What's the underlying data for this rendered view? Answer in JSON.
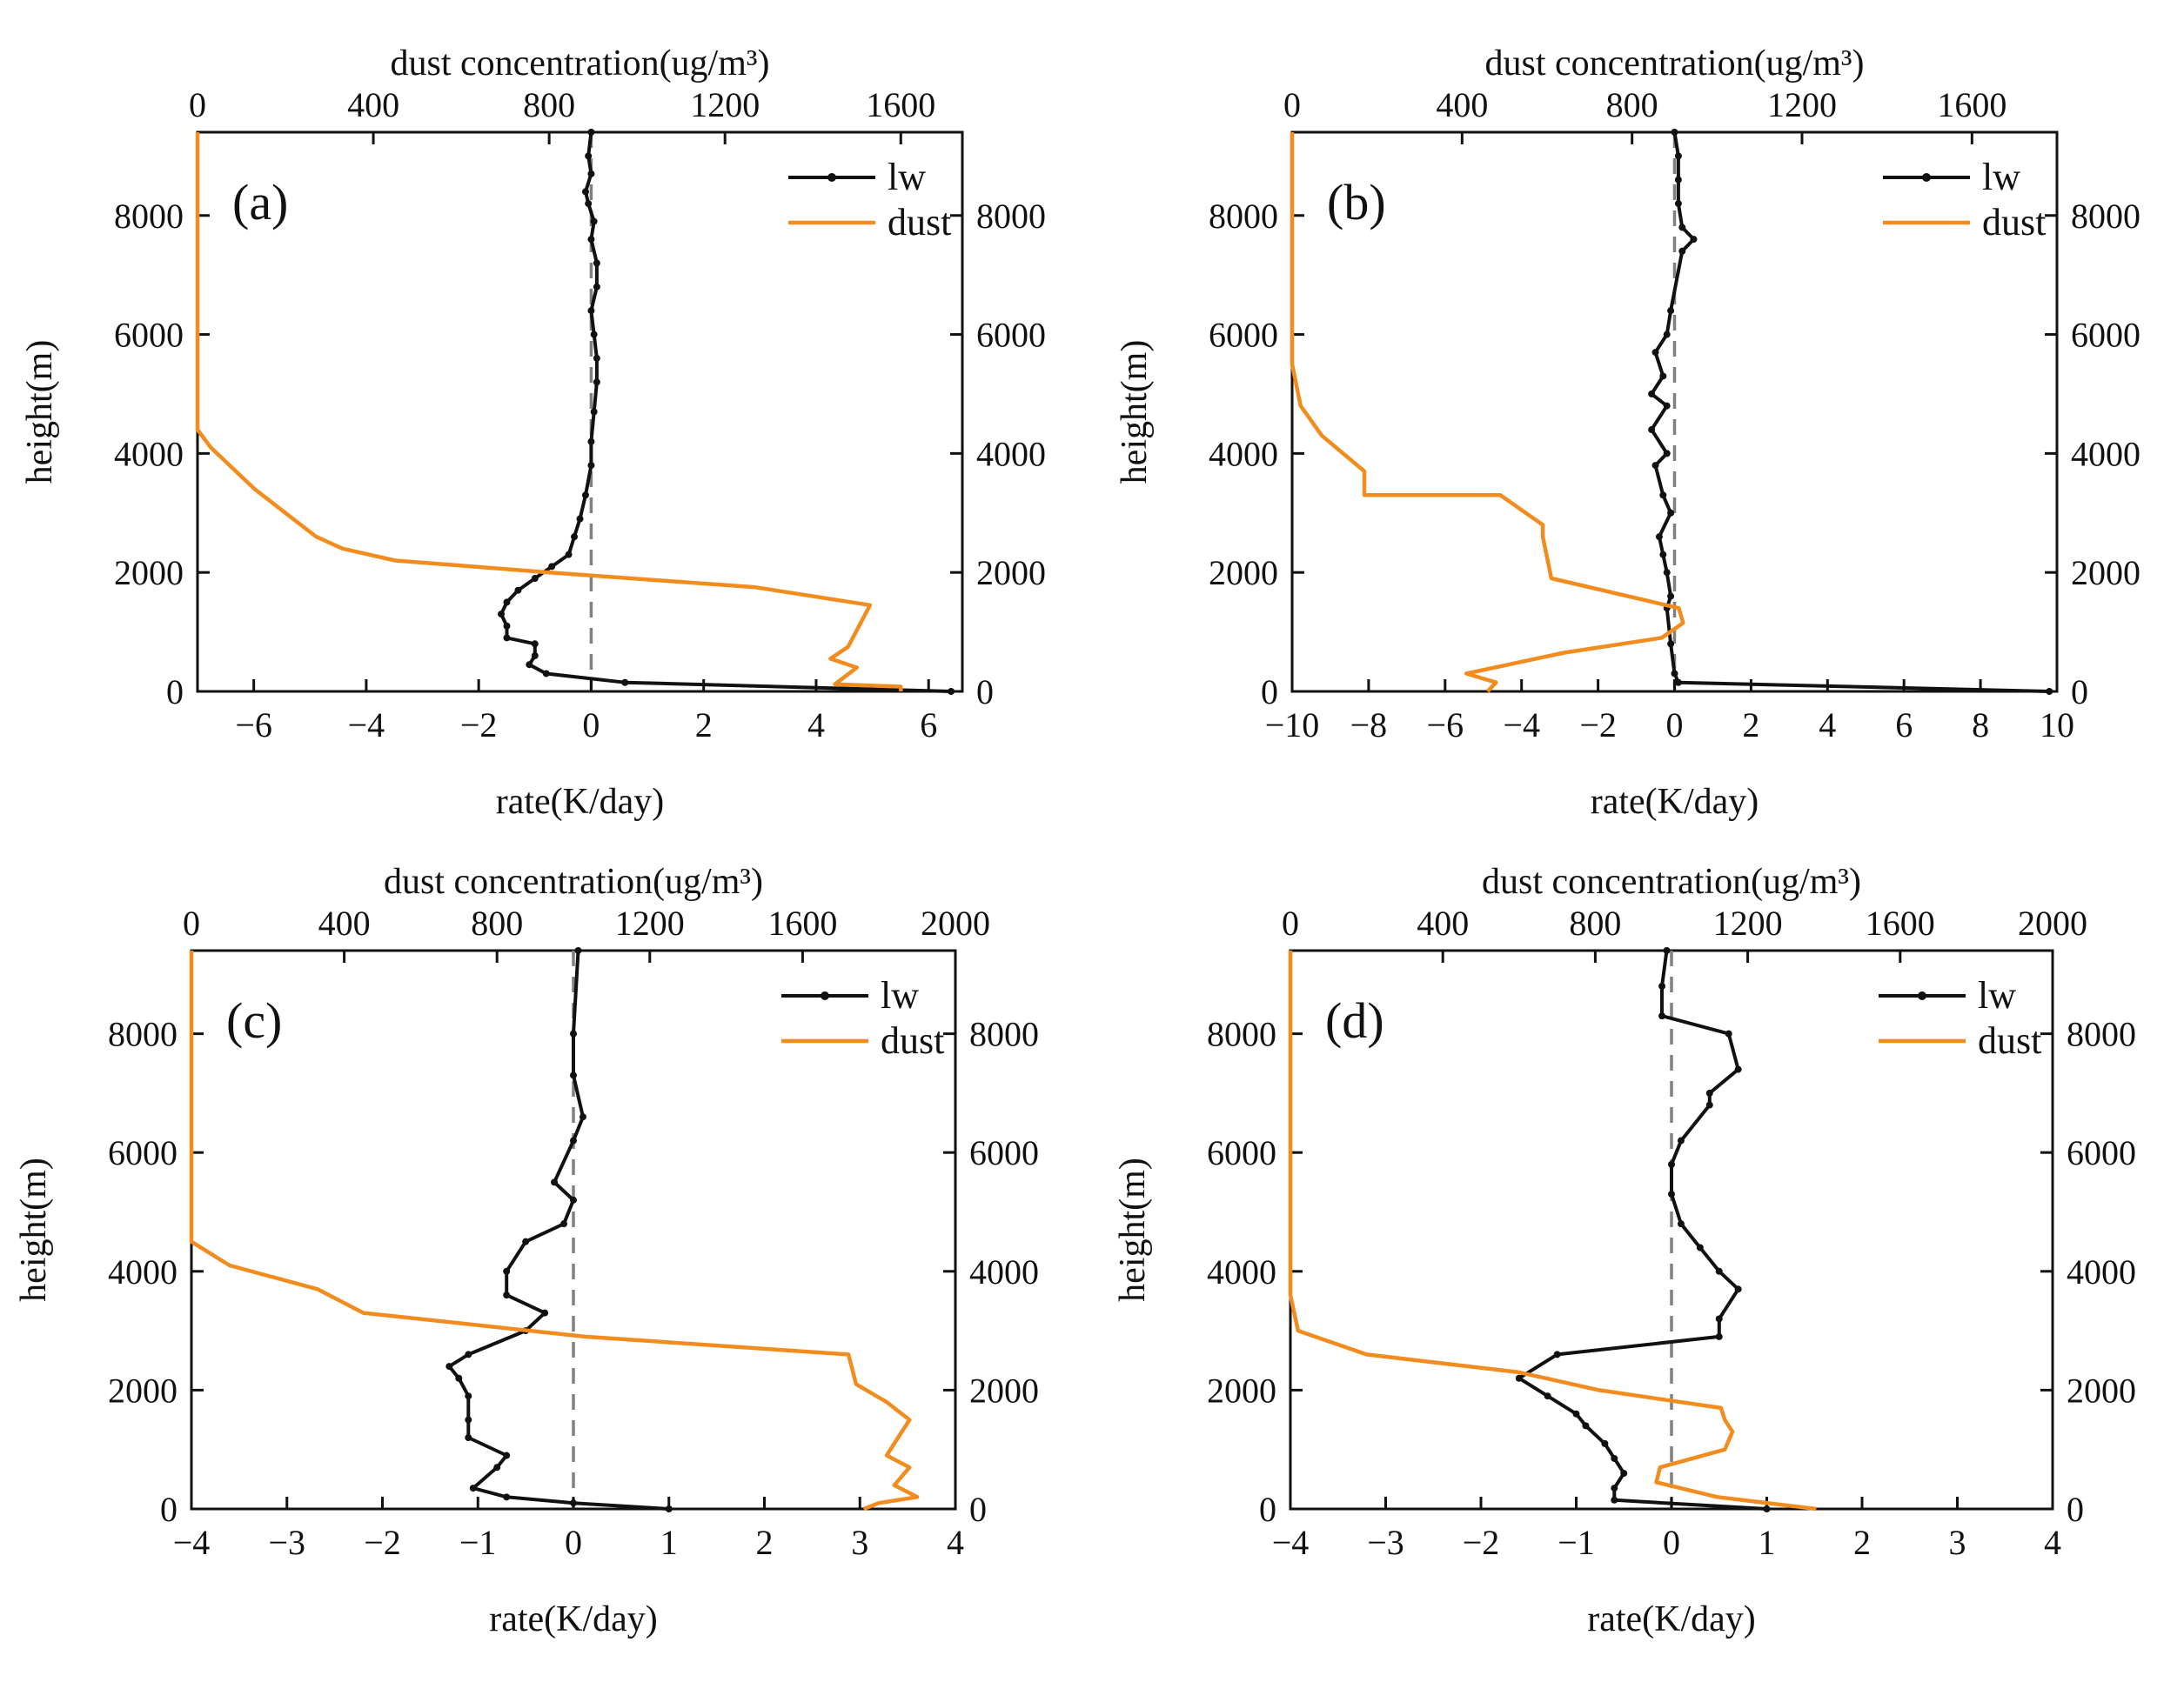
{
  "figure": {
    "top_axis_title": "dust concentration(ug/m³)",
    "bottom_axis_title": "rate(K/day)",
    "left_axis_title": "height(m)"
  },
  "colors": {
    "lw": "#111111",
    "dust": "#F28C1E",
    "zero_line": "#808080"
  },
  "chart_data": [
    {
      "type": "line",
      "panel": "(a)",
      "legend": [
        "lw",
        "dust"
      ],
      "xlabel": "rate(K/day)",
      "x2label": "dust concentration(ug/m³)",
      "ylabel": "height(m)",
      "xlim": [
        -7,
        6.6
      ],
      "x2lim": [
        0,
        1740
      ],
      "ylim": [
        0,
        9400
      ],
      "xticks": [
        -6,
        -4,
        -2,
        0,
        2,
        4,
        6
      ],
      "x2ticks": [
        0,
        400,
        800,
        1200,
        1600
      ],
      "yticks": [
        0,
        2000,
        4000,
        6000,
        8000
      ],
      "series": [
        {
          "name": "lw",
          "axis": "bottom",
          "x": [
            6.4,
            0.6,
            -0.8,
            -1.1,
            -1.0,
            -1.0,
            -1.5,
            -1.5,
            -1.6,
            -1.5,
            -1.3,
            -1.0,
            -0.7,
            -0.4,
            -0.3,
            -0.2,
            -0.1,
            0.0,
            0.0,
            0.05,
            0.1,
            0.1,
            0.05,
            0.0,
            0.1,
            0.1,
            0.0,
            0.05,
            -0.05,
            -0.1,
            0.0,
            -0.05,
            0.0
          ],
          "y": [
            0,
            150,
            300,
            450,
            600,
            800,
            900,
            1100,
            1300,
            1500,
            1700,
            1900,
            2100,
            2300,
            2600,
            2900,
            3300,
            3800,
            4200,
            4700,
            5200,
            5600,
            6000,
            6400,
            6800,
            7200,
            7600,
            7900,
            8200,
            8400,
            8700,
            9000,
            9400
          ]
        },
        {
          "name": "dust",
          "axis": "top",
          "x": [
            1600,
            1600,
            1450,
            1500,
            1440,
            1480,
            1530,
            1270,
            800,
            450,
            330,
            270,
            200,
            130,
            30,
            0,
            0
          ],
          "y": [
            0,
            80,
            120,
            400,
            550,
            750,
            1450,
            1750,
            2000,
            2200,
            2400,
            2600,
            3000,
            3400,
            4100,
            4400,
            9400
          ]
        }
      ]
    },
    {
      "type": "line",
      "panel": "(b)",
      "legend": [
        "lw",
        "dust"
      ],
      "xlabel": "rate(K/day)",
      "x2label": "dust concentration(ug/m³)",
      "ylabel": "height(m)",
      "xlim": [
        -10,
        10
      ],
      "x2lim": [
        0,
        1800
      ],
      "ylim": [
        0,
        9400
      ],
      "xticks": [
        -10,
        -8,
        -6,
        -4,
        -2,
        0,
        2,
        4,
        6,
        8,
        10
      ],
      "x2ticks": [
        0,
        400,
        800,
        1200,
        1600
      ],
      "yticks": [
        0,
        2000,
        4000,
        6000,
        8000
      ],
      "series": [
        {
          "name": "lw",
          "axis": "bottom",
          "x": [
            9.8,
            0.1,
            0.0,
            -0.1,
            -0.2,
            -0.1,
            -0.2,
            -0.3,
            -0.4,
            -0.1,
            -0.3,
            -0.5,
            -0.2,
            -0.6,
            -0.2,
            -0.6,
            -0.3,
            -0.5,
            -0.2,
            -0.1,
            0.2,
            0.5,
            0.2,
            0.1,
            0.1,
            0.1,
            0.0
          ],
          "y": [
            0,
            150,
            300,
            800,
            1400,
            1600,
            2000,
            2300,
            2600,
            3000,
            3300,
            3800,
            4000,
            4400,
            4800,
            5000,
            5300,
            5700,
            6000,
            6400,
            7400,
            7600,
            7800,
            8200,
            8600,
            9000,
            9400
          ]
        },
        {
          "name": "dust",
          "axis": "top",
          "x": [
            460,
            480,
            410,
            640,
            870,
            920,
            910,
            610,
            590,
            590,
            490,
            170,
            170,
            70,
            20,
            0,
            0
          ],
          "y": [
            0,
            150,
            300,
            650,
            900,
            1150,
            1400,
            1900,
            2600,
            2800,
            3300,
            3300,
            3700,
            4300,
            4800,
            5500,
            9400
          ]
        }
      ]
    },
    {
      "type": "line",
      "panel": "(c)",
      "legend": [
        "lw",
        "dust"
      ],
      "xlabel": "rate(K/day)",
      "x2label": "dust concentration(ug/m³)",
      "ylabel": "height(m)",
      "xlim": [
        -4,
        4
      ],
      "x2lim": [
        0,
        2000
      ],
      "ylim": [
        0,
        9400
      ],
      "xticks": [
        -4,
        -3,
        -2,
        -1,
        0,
        1,
        2,
        3,
        4
      ],
      "x2ticks": [
        0,
        400,
        800,
        1200,
        1600,
        2000
      ],
      "yticks": [
        0,
        2000,
        4000,
        6000,
        8000
      ],
      "series": [
        {
          "name": "lw",
          "axis": "bottom",
          "x": [
            1.0,
            0.0,
            -0.7,
            -1.05,
            -0.8,
            -0.7,
            -1.1,
            -1.1,
            -1.1,
            -1.2,
            -1.3,
            -1.1,
            -0.5,
            -0.3,
            -0.7,
            -0.7,
            -0.5,
            -0.1,
            0.0,
            -0.2,
            0.0,
            0.1,
            0.0,
            0.0,
            0.05
          ],
          "y": [
            0,
            100,
            200,
            350,
            700,
            900,
            1200,
            1500,
            1900,
            2200,
            2400,
            2600,
            3000,
            3300,
            3600,
            4000,
            4500,
            4800,
            5200,
            5500,
            6200,
            6600,
            7300,
            8000,
            9400
          ]
        },
        {
          "name": "dust",
          "axis": "top",
          "x": [
            1760,
            1800,
            1900,
            1840,
            1880,
            1820,
            1860,
            1880,
            1820,
            1740,
            1720,
            1030,
            450,
            330,
            100,
            0,
            0
          ],
          "y": [
            0,
            100,
            200,
            400,
            700,
            900,
            1300,
            1500,
            1800,
            2100,
            2600,
            2900,
            3300,
            3700,
            4100,
            4500,
            9400
          ]
        }
      ]
    },
    {
      "type": "line",
      "panel": "(d)",
      "legend": [
        "lw",
        "dust"
      ],
      "xlabel": "rate(K/day)",
      "x2label": "dust concentration(ug/m³)",
      "ylabel": "height(m)",
      "xlim": [
        -4,
        4
      ],
      "x2lim": [
        0,
        2000
      ],
      "ylim": [
        0,
        9400
      ],
      "xticks": [
        -4,
        -3,
        -2,
        -1,
        0,
        1,
        2,
        3,
        4
      ],
      "x2ticks": [
        0,
        400,
        800,
        1200,
        1600,
        2000
      ],
      "yticks": [
        0,
        2000,
        4000,
        6000,
        8000
      ],
      "series": [
        {
          "name": "lw",
          "axis": "bottom",
          "x": [
            1.0,
            -0.6,
            -0.6,
            -0.5,
            -0.6,
            -0.7,
            -0.9,
            -1.0,
            -1.3,
            -1.6,
            -1.2,
            0.5,
            0.5,
            0.7,
            0.5,
            0.3,
            0.1,
            0.0,
            0.0,
            0.1,
            0.4,
            0.4,
            0.7,
            0.6,
            -0.1,
            -0.1,
            -0.05
          ],
          "y": [
            0,
            150,
            350,
            600,
            850,
            1100,
            1400,
            1600,
            1900,
            2200,
            2600,
            2900,
            3200,
            3700,
            4000,
            4400,
            4800,
            5300,
            5800,
            6200,
            6800,
            7000,
            7400,
            8000,
            8300,
            8800,
            9400
          ]
        },
        {
          "name": "dust",
          "axis": "top",
          "x": [
            1380,
            1120,
            960,
            970,
            1140,
            1160,
            1140,
            1130,
            810,
            600,
            200,
            20,
            0,
            0
          ],
          "y": [
            0,
            200,
            450,
            700,
            1000,
            1300,
            1500,
            1700,
            2000,
            2300,
            2600,
            3000,
            3600,
            9400
          ]
        }
      ]
    }
  ]
}
